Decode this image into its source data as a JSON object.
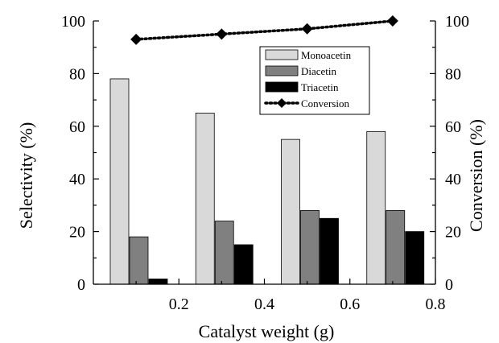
{
  "chart_data": {
    "type": "bar",
    "xlabel": "Catalyst weight (g)",
    "ylabel": "Selectivity (%)",
    "y2label": "Conversion (%)",
    "xlim": [
      0,
      0.8
    ],
    "ylim": [
      0,
      100
    ],
    "y2lim": [
      0,
      100
    ],
    "x_ticks": [
      "0.2",
      "0.4",
      "0.6",
      "0.8"
    ],
    "y_ticks": [
      "0",
      "20",
      "40",
      "60",
      "80",
      "100"
    ],
    "y2_ticks": [
      "0",
      "20",
      "40",
      "60",
      "80",
      "100"
    ],
    "categories": [
      0.1,
      0.3,
      0.5,
      0.7
    ],
    "series": [
      {
        "name": "Monoacetin",
        "kind": "bar",
        "color": "#d9d9d9",
        "values": [
          78,
          65,
          55,
          58
        ]
      },
      {
        "name": "Diacetin",
        "kind": "bar",
        "color": "#808080",
        "values": [
          18,
          24,
          28,
          28
        ]
      },
      {
        "name": "Triacetin",
        "kind": "bar",
        "color": "#000000",
        "values": [
          2,
          15,
          25,
          20
        ]
      },
      {
        "name": "Conversion",
        "kind": "line",
        "style": "dotted",
        "marker": "diamond",
        "axis": "right",
        "color": "#000000",
        "x": [
          0.1,
          0.3,
          0.5,
          0.7
        ],
        "values": [
          93,
          95,
          97,
          100
        ]
      }
    ],
    "legend_position": "top-right",
    "grid": false
  }
}
